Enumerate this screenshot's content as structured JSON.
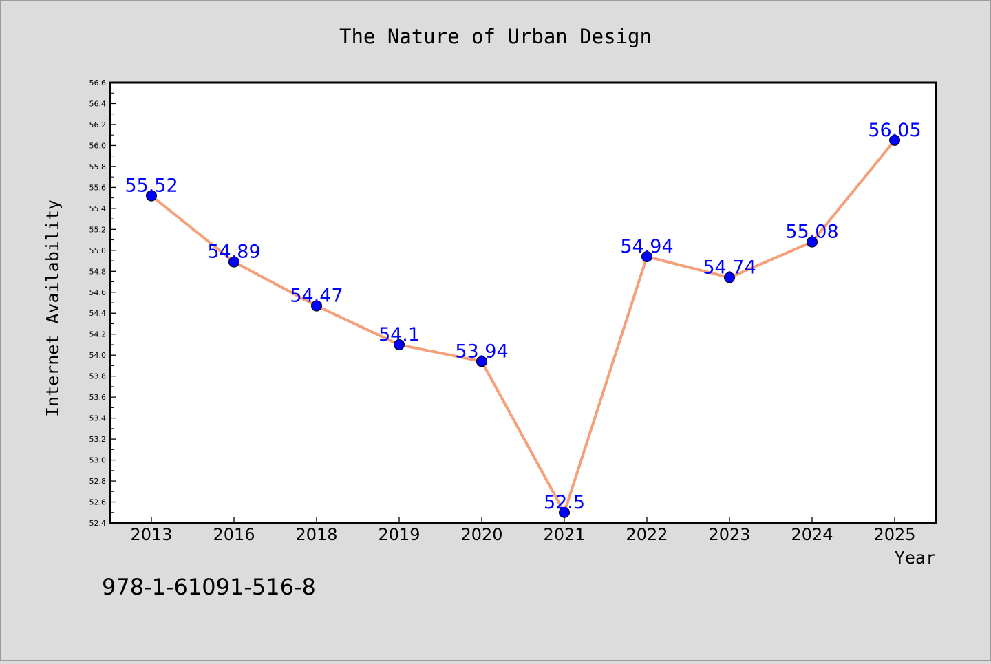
{
  "chart_data": {
    "type": "line",
    "title": "The Nature of Urban Design",
    "xlabel": "Year",
    "ylabel": "Internet Availability",
    "categories": [
      "2013",
      "2016",
      "2018",
      "2019",
      "2020",
      "2021",
      "2022",
      "2023",
      "2024",
      "2025"
    ],
    "series": [
      {
        "values": [
          55.52,
          54.89,
          54.47,
          54.1,
          53.94,
          52.5,
          54.94,
          54.74,
          55.08,
          56.05
        ],
        "data_labels": [
          "55.52",
          "54.89",
          "54.47",
          "54.1",
          "53.94",
          "52.5",
          "54.94",
          "54.74",
          "55.08",
          "56.05"
        ],
        "line_color": "#f4a07a",
        "marker_color": "#0000ff"
      }
    ],
    "ylim": [
      52.4,
      56.6
    ],
    "yticks": [
      "52.4",
      "52.6",
      "52.8",
      "53.0",
      "53.2",
      "53.4",
      "53.6",
      "53.8",
      "54.0",
      "54.2",
      "54.4",
      "54.6",
      "54.8",
      "55.0",
      "55.2",
      "55.4",
      "55.6",
      "55.8",
      "56.0",
      "56.2",
      "56.4",
      "56.6"
    ],
    "grid": false,
    "legend": "none"
  },
  "annotation": {
    "isbn": "978-1-61091-516-8"
  },
  "colors": {
    "background": "#dcdcdc",
    "plot_area": "#ffffff",
    "line": "#f4a07a",
    "marker": "#0000ff",
    "data_label": "#0000ff"
  }
}
